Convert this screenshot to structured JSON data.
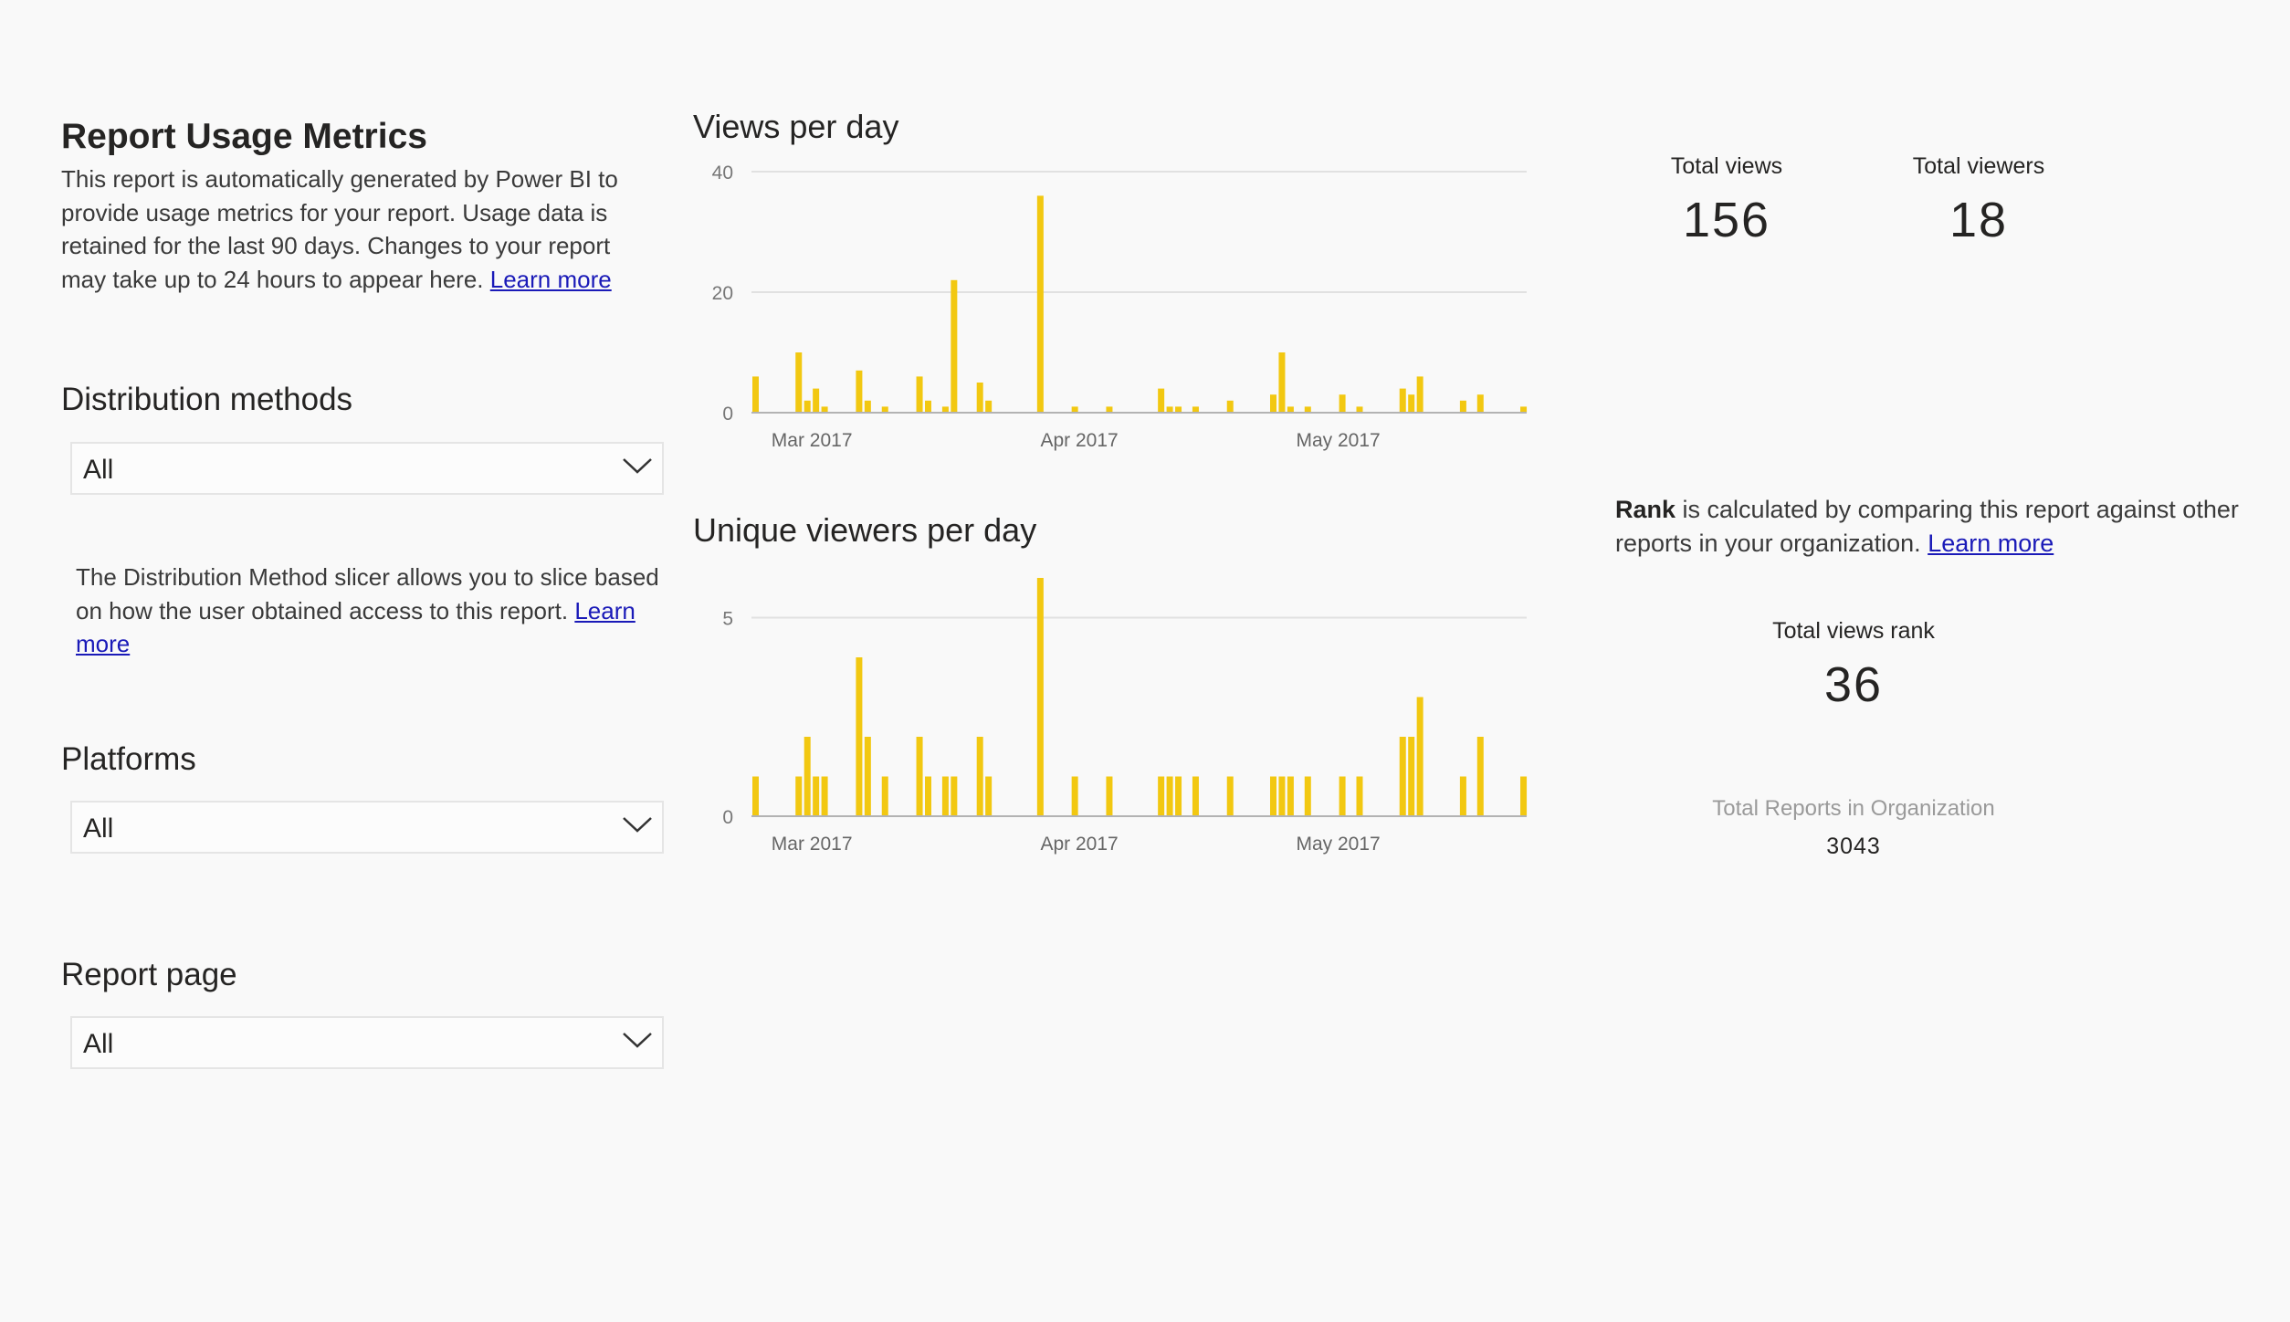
{
  "report": {
    "title": "Report Usage Metrics",
    "intro_text": "This report is automatically generated by Power BI to provide usage metrics for your report. Usage data is retained for the last 90 days. Changes to your report may take up to 24 hours to appear here.",
    "learn_more": "Learn more"
  },
  "slicers": {
    "distribution": {
      "label": "Distribution methods",
      "value": "All",
      "note": "The Distribution Method slicer allows you to slice based on how the user obtained access to this report.",
      "learn_more": "Learn more"
    },
    "platforms": {
      "label": "Platforms",
      "value": "All"
    },
    "report_page": {
      "label": "Report page",
      "value": "All"
    }
  },
  "kpis": {
    "total_views_label": "Total views",
    "total_views": "156",
    "total_viewers_label": "Total viewers",
    "total_viewers": "18"
  },
  "rank": {
    "bold": "Rank",
    "text": " is calculated by comparing this report against other reports in your organization. ",
    "learn_more": "Learn more",
    "total_views_rank_label": "Total views rank",
    "total_views_rank": "36",
    "total_reports_label": "Total Reports in Organization",
    "total_reports": "3043"
  },
  "colors": {
    "bar": "#F2C811",
    "gridline": "#e1e1e1",
    "axis": "#b3b3b3",
    "link": "#1a1ab8"
  },
  "icons": {
    "slicer_dropdown": "chevron-down-icon"
  },
  "chart_data": [
    {
      "type": "bar",
      "title": "Views per day",
      "x_tick_labels": [
        "Mar 2017",
        "Apr 2017",
        "May 2017"
      ],
      "y_ticks": [
        0,
        20,
        40
      ],
      "ylim": [
        0,
        40
      ],
      "grid": true,
      "series": [
        {
          "values": [
            {
              "date": "2017-02-22",
              "value": 6
            },
            {
              "date": "2017-02-27",
              "value": 10
            },
            {
              "date": "2017-02-28",
              "value": 2
            },
            {
              "date": "2017-03-01",
              "value": 4
            },
            {
              "date": "2017-03-02",
              "value": 1
            },
            {
              "date": "2017-03-06",
              "value": 7
            },
            {
              "date": "2017-03-07",
              "value": 2
            },
            {
              "date": "2017-03-09",
              "value": 1
            },
            {
              "date": "2017-03-13",
              "value": 6
            },
            {
              "date": "2017-03-14",
              "value": 2
            },
            {
              "date": "2017-03-16",
              "value": 1
            },
            {
              "date": "2017-03-17",
              "value": 22
            },
            {
              "date": "2017-03-20",
              "value": 5
            },
            {
              "date": "2017-03-21",
              "value": 2
            },
            {
              "date": "2017-03-27",
              "value": 36
            },
            {
              "date": "2017-03-31",
              "value": 1
            },
            {
              "date": "2017-04-04",
              "value": 1
            },
            {
              "date": "2017-04-10",
              "value": 4
            },
            {
              "date": "2017-04-11",
              "value": 1
            },
            {
              "date": "2017-04-12",
              "value": 1
            },
            {
              "date": "2017-04-14",
              "value": 1
            },
            {
              "date": "2017-04-18",
              "value": 2
            },
            {
              "date": "2017-04-23",
              "value": 3
            },
            {
              "date": "2017-04-24",
              "value": 10
            },
            {
              "date": "2017-04-25",
              "value": 1
            },
            {
              "date": "2017-04-27",
              "value": 1
            },
            {
              "date": "2017-05-01",
              "value": 3
            },
            {
              "date": "2017-05-03",
              "value": 1
            },
            {
              "date": "2017-05-08",
              "value": 4
            },
            {
              "date": "2017-05-09",
              "value": 3
            },
            {
              "date": "2017-05-10",
              "value": 6
            },
            {
              "date": "2017-05-15",
              "value": 2
            },
            {
              "date": "2017-05-17",
              "value": 3
            },
            {
              "date": "2017-05-22",
              "value": 1
            }
          ]
        }
      ]
    },
    {
      "type": "bar",
      "title": "Unique viewers per day",
      "x_tick_labels": [
        "Mar 2017",
        "Apr 2017",
        "May 2017"
      ],
      "y_ticks": [
        0,
        5
      ],
      "ylim": [
        0,
        6
      ],
      "grid": true,
      "series": [
        {
          "values": [
            {
              "date": "2017-02-22",
              "value": 1
            },
            {
              "date": "2017-02-27",
              "value": 1
            },
            {
              "date": "2017-02-28",
              "value": 2
            },
            {
              "date": "2017-03-01",
              "value": 1
            },
            {
              "date": "2017-03-02",
              "value": 1
            },
            {
              "date": "2017-03-06",
              "value": 4
            },
            {
              "date": "2017-03-07",
              "value": 2
            },
            {
              "date": "2017-03-09",
              "value": 1
            },
            {
              "date": "2017-03-13",
              "value": 2
            },
            {
              "date": "2017-03-14",
              "value": 1
            },
            {
              "date": "2017-03-16",
              "value": 1
            },
            {
              "date": "2017-03-17",
              "value": 1
            },
            {
              "date": "2017-03-20",
              "value": 2
            },
            {
              "date": "2017-03-21",
              "value": 1
            },
            {
              "date": "2017-03-27",
              "value": 6
            },
            {
              "date": "2017-03-31",
              "value": 1
            },
            {
              "date": "2017-04-04",
              "value": 1
            },
            {
              "date": "2017-04-10",
              "value": 1
            },
            {
              "date": "2017-04-11",
              "value": 1
            },
            {
              "date": "2017-04-12",
              "value": 1
            },
            {
              "date": "2017-04-14",
              "value": 1
            },
            {
              "date": "2017-04-18",
              "value": 1
            },
            {
              "date": "2017-04-23",
              "value": 1
            },
            {
              "date": "2017-04-24",
              "value": 1
            },
            {
              "date": "2017-04-25",
              "value": 1
            },
            {
              "date": "2017-04-27",
              "value": 1
            },
            {
              "date": "2017-05-01",
              "value": 1
            },
            {
              "date": "2017-05-03",
              "value": 1
            },
            {
              "date": "2017-05-08",
              "value": 2
            },
            {
              "date": "2017-05-09",
              "value": 2
            },
            {
              "date": "2017-05-10",
              "value": 3
            },
            {
              "date": "2017-05-15",
              "value": 1
            },
            {
              "date": "2017-05-17",
              "value": 2
            },
            {
              "date": "2017-05-22",
              "value": 1
            }
          ]
        }
      ]
    }
  ]
}
